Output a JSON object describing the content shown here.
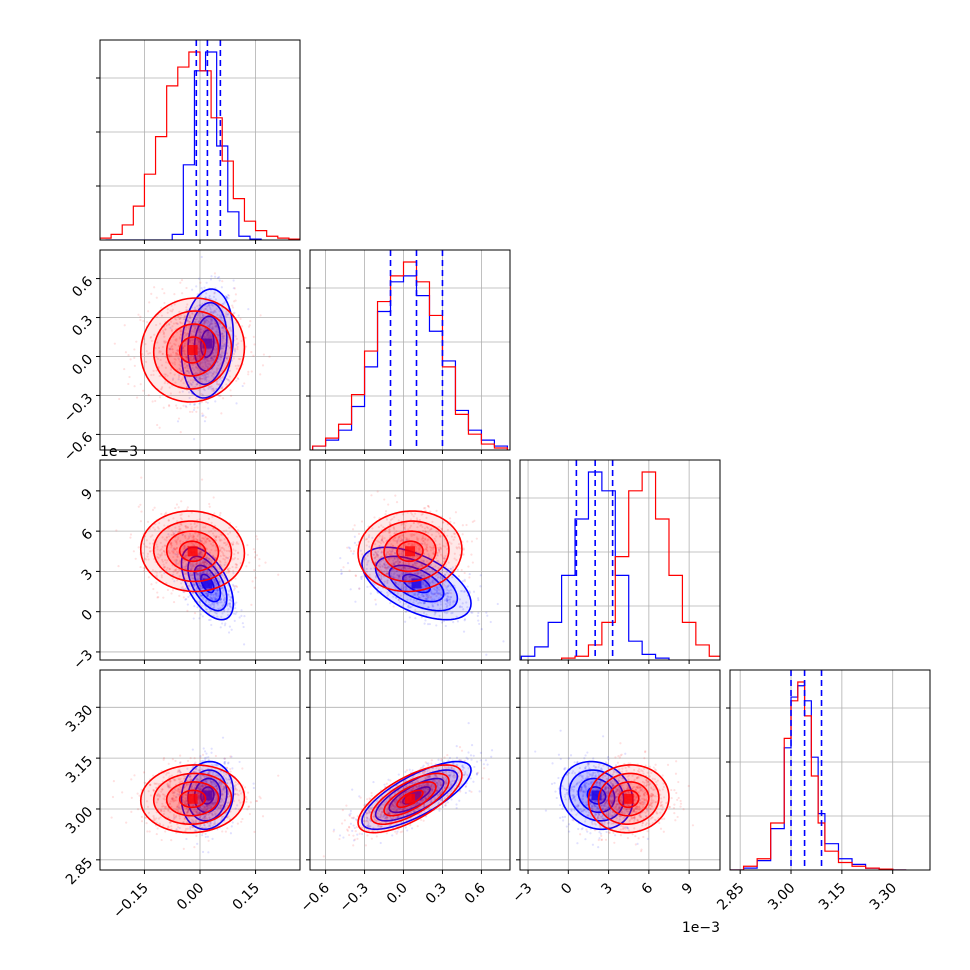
{
  "colors": {
    "series_a": "#0000ff",
    "series_b": "#ff0000",
    "grid": "#b0b0b0",
    "frame": "#000000"
  },
  "chart_data": {
    "type": "corner",
    "parameters": [
      {
        "name": "",
        "range": [
          -0.27,
          0.27
        ],
        "ticks": [
          -0.15,
          0.0,
          0.15
        ],
        "tick_labels": [
          "−0.15",
          "0.00",
          "0.15"
        ]
      },
      {
        "name": "",
        "range": [
          -0.72,
          0.82
        ],
        "ticks": [
          -0.6,
          -0.3,
          0.0,
          0.3,
          0.6
        ],
        "tick_labels": [
          "−0.6",
          "−0.3",
          "0.0",
          "0.3",
          "0.6"
        ]
      },
      {
        "name": "",
        "range": [
          -3.6,
          11.3
        ],
        "ticks": [
          -3,
          0,
          3,
          6,
          9
        ],
        "tick_labels": [
          "−3",
          "0",
          "3",
          "6",
          "9"
        ],
        "scale_label": "1e−3"
      },
      {
        "name": "",
        "range": [
          2.82,
          3.41
        ],
        "ticks": [
          2.85,
          3.0,
          3.15,
          3.3
        ],
        "tick_labels": [
          "2.85",
          "3.00",
          "3.15",
          "3.30"
        ]
      }
    ],
    "grid": true,
    "series": [
      {
        "color": "#0000ff",
        "mean": [
          0.02,
          0.1,
          2.1,
          3.04
        ],
        "std": [
          0.035,
          0.21,
          1.35,
          0.05
        ],
        "corr": [
          [
            1,
            0.15,
            -0.55,
            0.1
          ],
          [
            0.15,
            1,
            -0.55,
            0.75
          ],
          [
            -0.55,
            -0.55,
            1,
            -0.15
          ],
          [
            0.1,
            0.75,
            -0.15,
            1
          ]
        ]
      },
      {
        "color": "#ff0000",
        "mean": [
          -0.02,
          0.05,
          4.5,
          3.03
        ],
        "std": [
          0.07,
          0.2,
          1.5,
          0.05
        ],
        "corr": [
          [
            1,
            0.05,
            -0.05,
            0.05
          ],
          [
            0.05,
            1,
            0.05,
            0.7
          ],
          [
            -0.05,
            0.05,
            1,
            0.05
          ],
          [
            0.05,
            0.7,
            0.05,
            1
          ]
        ]
      }
    ],
    "quantile_lines": {
      "color": "#0000ff",
      "style": "dashed",
      "values": [
        [
          -0.01,
          0.02,
          0.055
        ],
        [
          -0.1,
          0.1,
          0.3
        ],
        [
          0.6,
          2.0,
          3.3
        ],
        [
          3.0,
          3.04,
          3.09
        ]
      ]
    },
    "histograms": [
      {
        "series": [
          {
            "color": "#0000ff",
            "edges": [
              -0.255,
              -0.225,
              -0.195,
              -0.165,
              -0.135,
              -0.105,
              -0.075,
              -0.045,
              -0.015,
              0.015,
              0.045,
              0.075,
              0.105,
              0.135,
              0.165
            ],
            "counts": [
              0,
              0,
              0,
              0,
              0,
              0,
              0.03,
              0.4,
              0.9,
              1.0,
              0.5,
              0.15,
              0.02,
              0.005
            ]
          },
          {
            "color": "#ff0000",
            "edges": [
              -0.27,
              -0.24,
              -0.21,
              -0.18,
              -0.15,
              -0.12,
              -0.09,
              -0.06,
              -0.03,
              0.0,
              0.03,
              0.06,
              0.09,
              0.12,
              0.15,
              0.18,
              0.21,
              0.24,
              0.27
            ],
            "counts": [
              0.01,
              0.03,
              0.08,
              0.18,
              0.35,
              0.55,
              0.82,
              0.92,
              1.0,
              0.9,
              0.65,
              0.42,
              0.22,
              0.1,
              0.05,
              0.02,
              0.01,
              0.005
            ]
          }
        ]
      },
      {
        "series": [
          {
            "color": "#0000ff",
            "edges": [
              -0.7,
              -0.6,
              -0.5,
              -0.4,
              -0.3,
              -0.2,
              -0.1,
              0.0,
              0.1,
              0.2,
              0.3,
              0.4,
              0.5,
              0.6,
              0.7,
              0.8
            ],
            "counts": [
              0.02,
              0.05,
              0.1,
              0.22,
              0.42,
              0.7,
              0.85,
              0.88,
              0.78,
              0.6,
              0.45,
              0.2,
              0.1,
              0.05,
              0.02
            ]
          },
          {
            "color": "#ff0000",
            "edges": [
              -0.7,
              -0.6,
              -0.5,
              -0.4,
              -0.3,
              -0.2,
              -0.1,
              0.0,
              0.1,
              0.2,
              0.3,
              0.4,
              0.5,
              0.6,
              0.7,
              0.8
            ],
            "counts": [
              0.02,
              0.06,
              0.13,
              0.28,
              0.5,
              0.75,
              0.88,
              0.95,
              0.85,
              0.68,
              0.42,
              0.18,
              0.08,
              0.03,
              0.01
            ]
          }
        ]
      },
      {
        "series": [
          {
            "color": "#0000ff",
            "edges": [
              -3.5,
              -2.5,
              -1.5,
              -0.5,
              0.5,
              1.5,
              2.5,
              3.5,
              4.5,
              5.5,
              6.5,
              7.5
            ],
            "counts": [
              0.02,
              0.07,
              0.2,
              0.45,
              0.75,
              1.0,
              0.9,
              0.45,
              0.1,
              0.03,
              0.01
            ]
          },
          {
            "color": "#ff0000",
            "edges": [
              -0.5,
              0.5,
              1.5,
              2.5,
              3.5,
              4.5,
              5.5,
              6.5,
              7.5,
              8.5,
              9.5,
              10.5,
              11.5
            ],
            "counts": [
              0.01,
              0.02,
              0.08,
              0.2,
              0.55,
              0.9,
              1.0,
              0.75,
              0.45,
              0.2,
              0.08,
              0.02
            ]
          }
        ]
      },
      {
        "series": [
          {
            "color": "#0000ff",
            "edges": [
              2.82,
              2.86,
              2.9,
              2.94,
              2.98,
              3.0,
              3.02,
              3.04,
              3.06,
              3.08,
              3.1,
              3.14,
              3.18,
              3.22,
              3.26,
              3.3,
              3.34
            ],
            "counts": [
              0,
              0.01,
              0.05,
              0.22,
              0.65,
              0.92,
              0.98,
              0.9,
              0.6,
              0.3,
              0.14,
              0.06,
              0.03,
              0.01,
              0.005,
              0
            ]
          },
          {
            "color": "#ff0000",
            "edges": [
              2.82,
              2.86,
              2.9,
              2.94,
              2.98,
              3.0,
              3.02,
              3.04,
              3.06,
              3.08,
              3.1,
              3.14,
              3.18,
              3.22,
              3.26,
              3.3,
              3.34
            ],
            "counts": [
              0,
              0.02,
              0.06,
              0.25,
              0.7,
              0.9,
              1.0,
              0.82,
              0.5,
              0.25,
              0.1,
              0.04,
              0.02,
              0.01,
              0.005,
              0
            ]
          }
        ]
      }
    ],
    "scatter_sample_size": 700,
    "contour_levels_sigma": [
      0.5,
      1.0,
      1.5,
      2.0
    ]
  }
}
